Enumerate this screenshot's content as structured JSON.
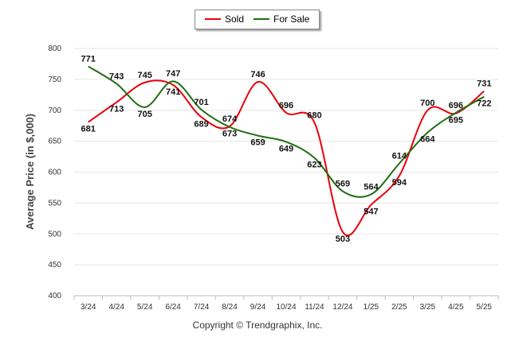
{
  "chart_data": {
    "type": "line",
    "categories": [
      "3/24",
      "4/24",
      "5/24",
      "6/24",
      "7/24",
      "8/24",
      "9/24",
      "10/24",
      "11/24",
      "12/24",
      "1/25",
      "2/25",
      "3/25",
      "4/25",
      "5/25"
    ],
    "series": [
      {
        "name": "Sold",
        "color": "#e8000b",
        "values": [
          681,
          713,
          745,
          741,
          689,
          674,
          746,
          696,
          680,
          503,
          547,
          594,
          700,
          695,
          731
        ]
      },
      {
        "name": "For Sale",
        "color": "#1f6e10",
        "values": [
          771,
          743,
          705,
          747,
          701,
          673,
          659,
          649,
          623,
          569,
          564,
          614,
          664,
          696,
          722
        ]
      }
    ],
    "ylabel": "Average Price (in $,000)",
    "xlabel": "",
    "ylim": [
      400,
      800
    ],
    "yticks": [
      400,
      450,
      500,
      550,
      600,
      650,
      700,
      750,
      800
    ],
    "grid": true,
    "legend": "top-center"
  },
  "legend": {
    "sold_label": "Sold",
    "for_sale_label": "For Sale"
  },
  "footer": {
    "copyright": "Copyright © Trendgraphix, Inc."
  }
}
